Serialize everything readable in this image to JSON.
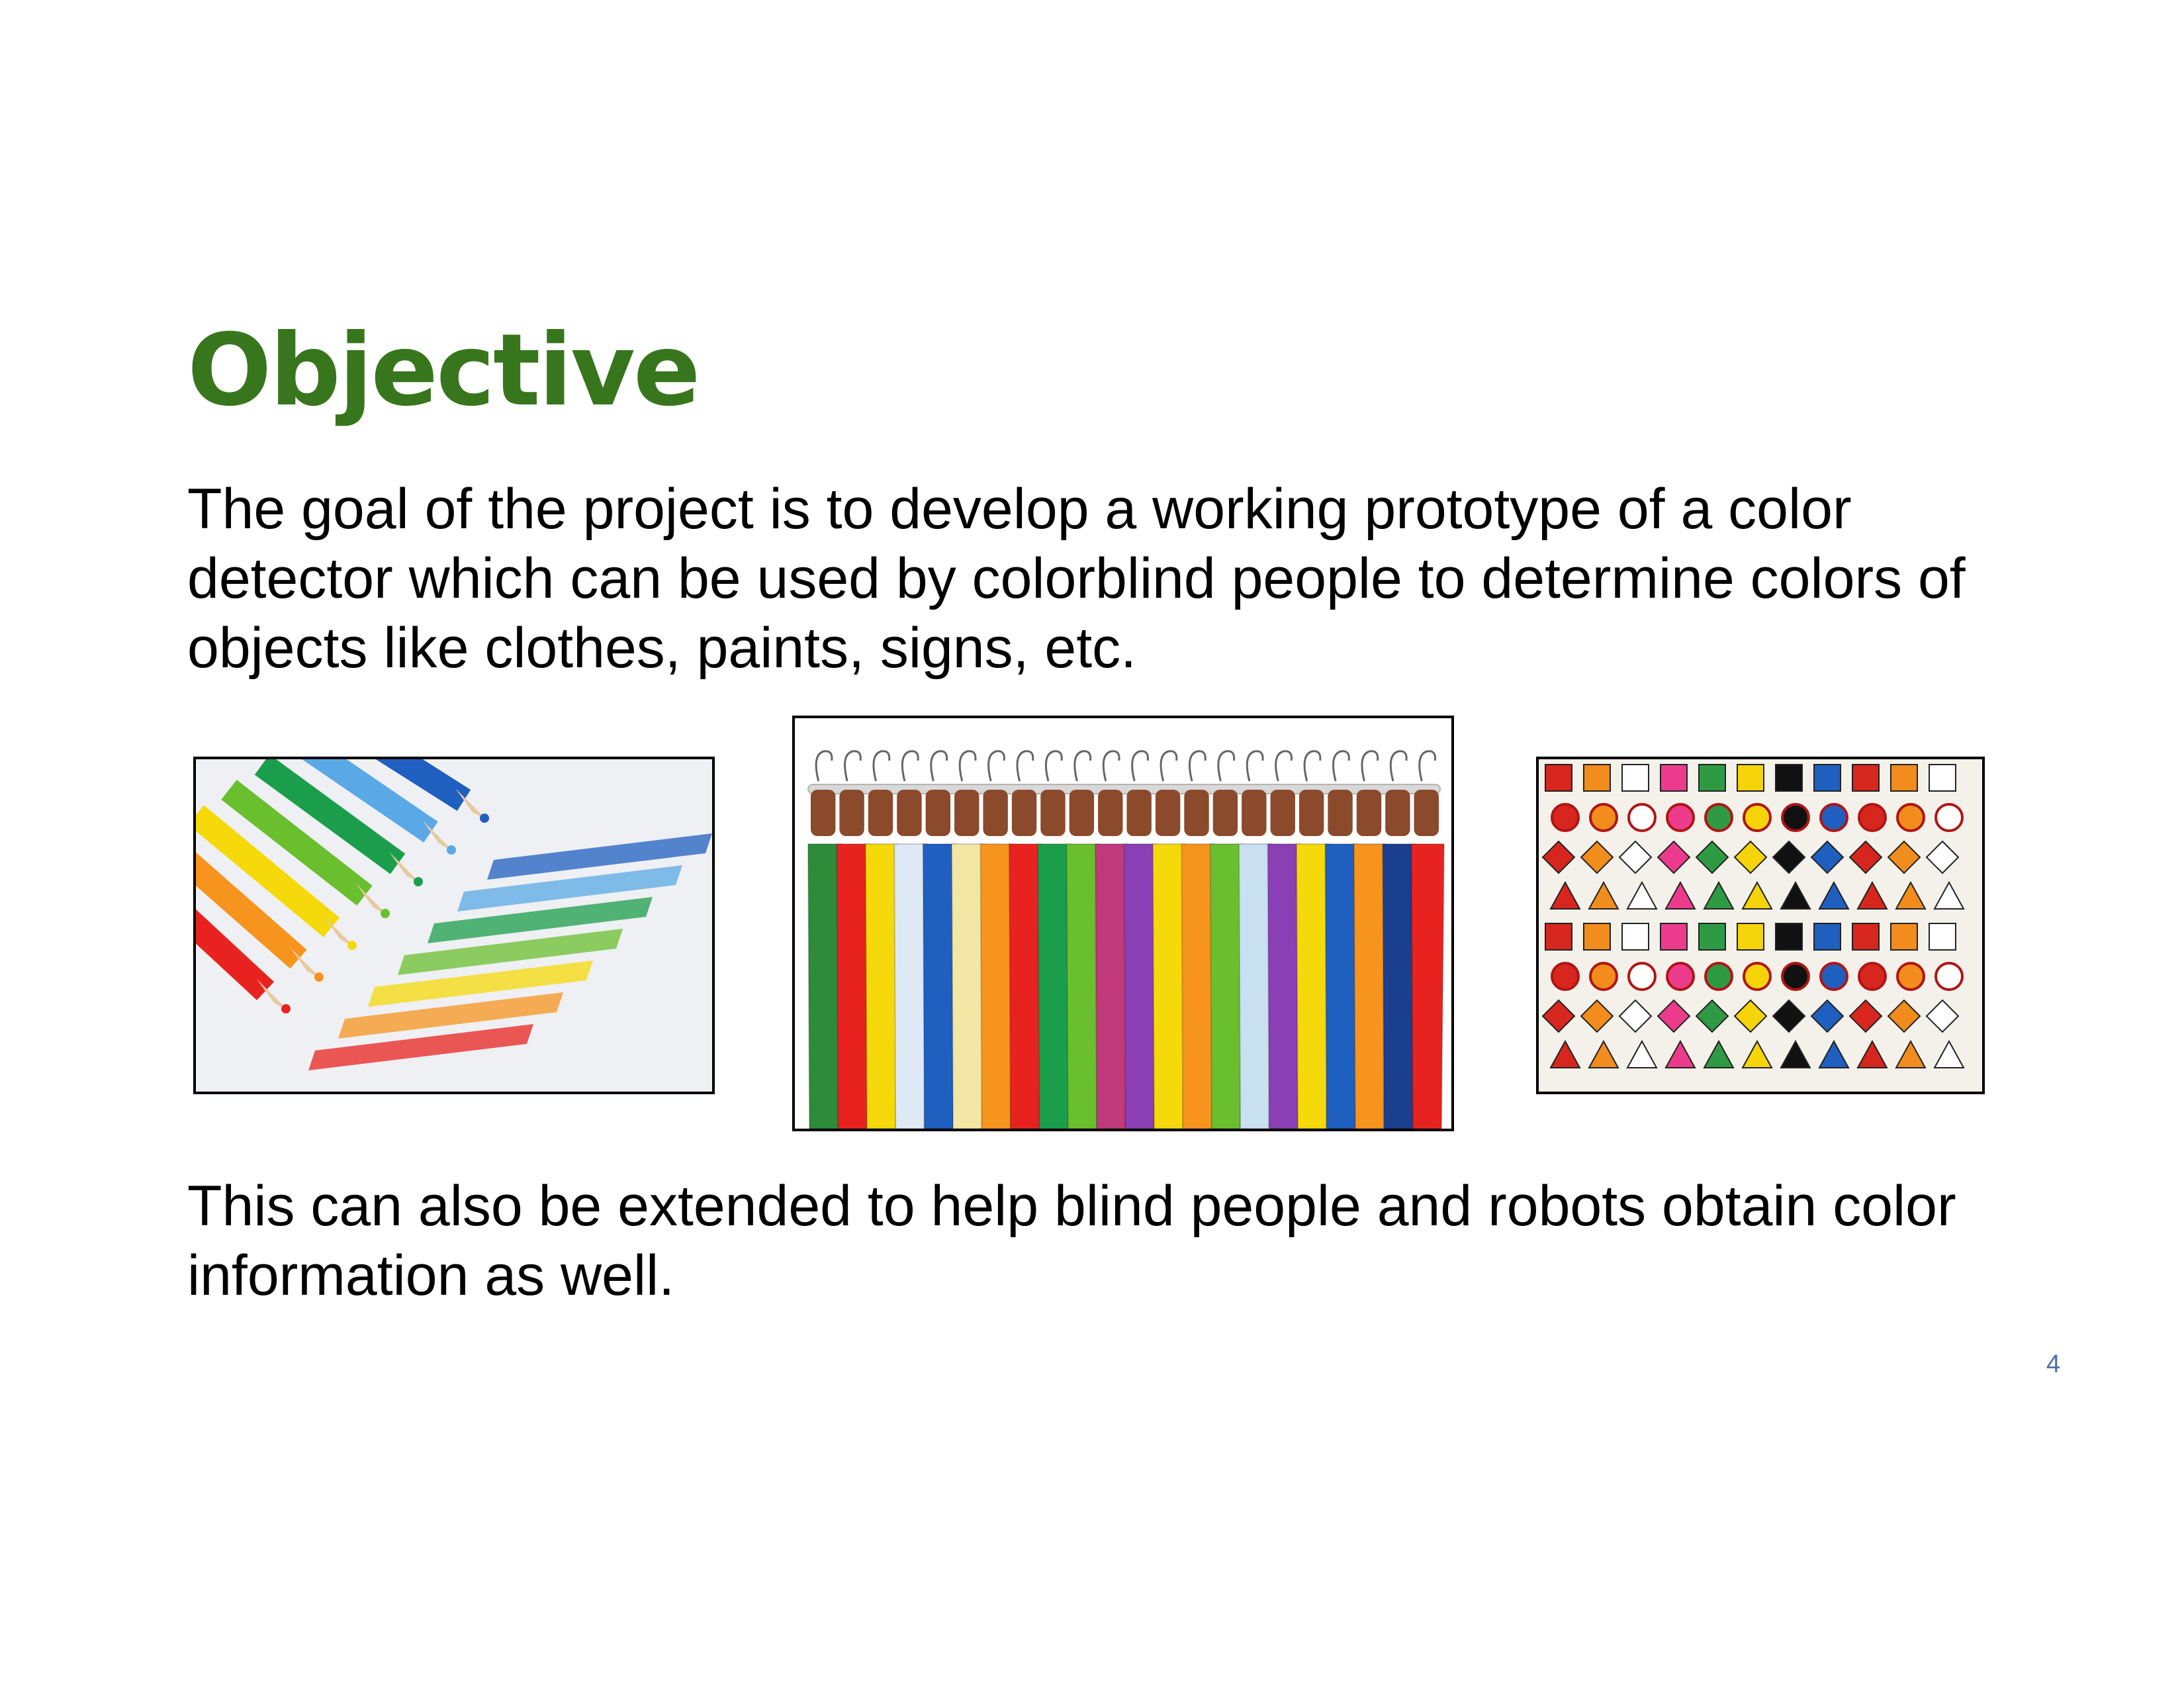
{
  "slide": {
    "title": "Objective",
    "paragraph1": "The goal of the project is to develop a working prototype of a color detector which can be used by colorblind people to determine colors of objects like clothes, paints, signs, etc.",
    "paragraph2": "This can also be extended to help blind people and robots obtain color information as well.",
    "page_number": "4"
  },
  "colors": {
    "title": "#38761d",
    "page_number": "#4a6fa5",
    "swatches": [
      "#e8231f",
      "#f7941d",
      "#f5d90a",
      "#6abf2e",
      "#1b9e4b",
      "#5aa9e6",
      "#1f5fbf",
      "#8a3fb5",
      "#ec3b8c"
    ]
  },
  "images": [
    {
      "name": "colored-pencils-photo"
    },
    {
      "name": "colorful-shirts-on-rack-photo"
    },
    {
      "name": "road-signs-collage-photo"
    }
  ]
}
